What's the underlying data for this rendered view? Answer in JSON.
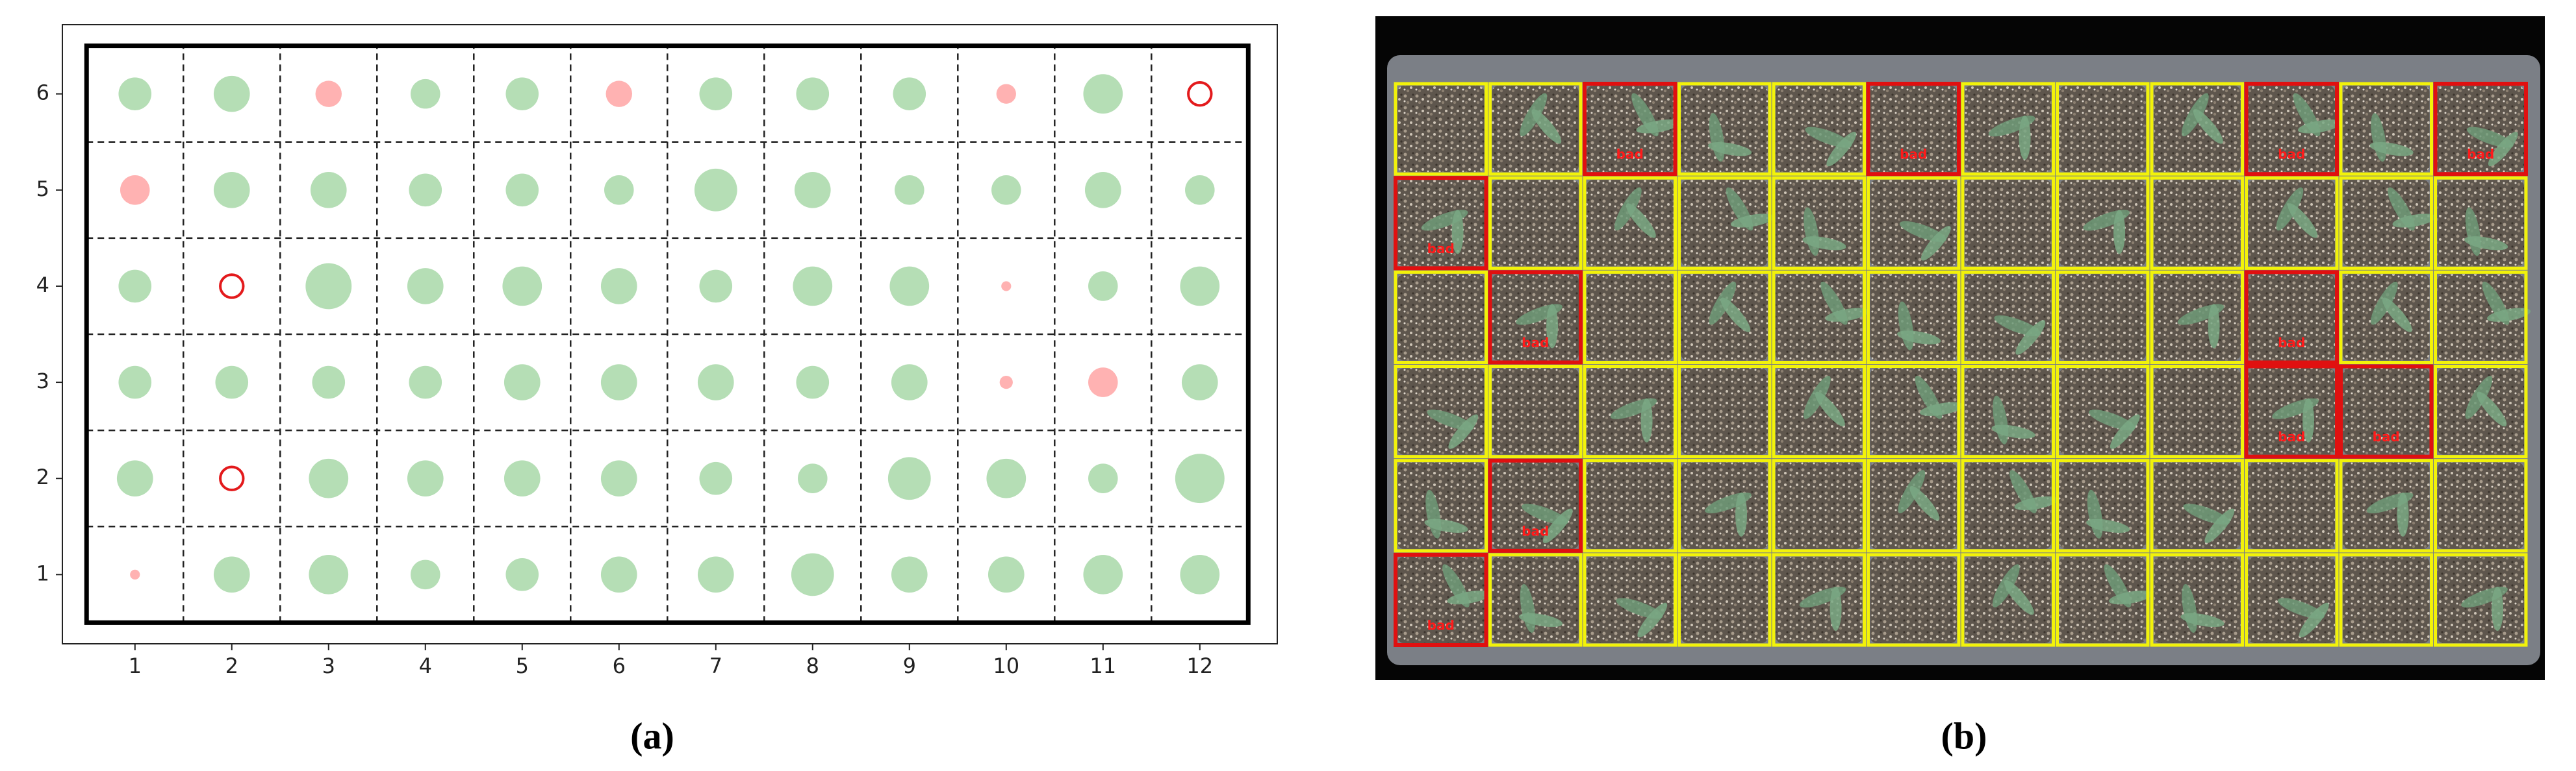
{
  "chart_data": {
    "type": "scatter",
    "xlim": [
      0.25,
      12.8
    ],
    "ylim": [
      0.28,
      6.72
    ],
    "xticks": [
      1,
      2,
      3,
      4,
      5,
      6,
      7,
      8,
      9,
      10,
      11,
      12
    ],
    "yticks": [
      1,
      2,
      3,
      4,
      5,
      6
    ],
    "series": [
      {
        "color": "#2ca02c",
        "alpha": 0.35,
        "filled": true,
        "x": [
          1,
          2,
          4,
          5,
          7,
          8,
          9,
          11,
          2,
          3,
          4,
          5,
          6,
          7,
          8,
          9,
          10,
          11,
          12,
          1,
          3,
          4,
          5,
          6,
          7,
          8,
          9,
          11,
          12,
          1,
          2,
          3,
          4,
          5,
          6,
          7,
          8,
          9,
          12,
          1,
          3,
          4,
          5,
          6,
          7,
          8,
          9,
          10,
          11,
          12,
          2,
          3,
          4,
          5,
          6,
          7,
          8,
          9,
          10,
          11,
          12
        ],
        "y": [
          6,
          6,
          6,
          6,
          6,
          6,
          6,
          6,
          5,
          5,
          5,
          5,
          5,
          5,
          5,
          5,
          5,
          5,
          5,
          4,
          4,
          4,
          4,
          4,
          4,
          4,
          4,
          4,
          4,
          3,
          3,
          3,
          3,
          3,
          3,
          3,
          3,
          3,
          3,
          2,
          2,
          2,
          2,
          2,
          2,
          2,
          2,
          2,
          2,
          2,
          1,
          1,
          1,
          1,
          1,
          1,
          1,
          1,
          1,
          1,
          1
        ],
        "sizes": [
          100,
          121,
          81,
          100,
          100,
          100,
          100,
          144,
          121,
          121,
          100,
          100,
          81,
          169,
          121,
          81,
          81,
          121,
          81,
          100,
          196,
          121,
          144,
          121,
          100,
          144,
          144,
          81,
          144,
          100,
          100,
          100,
          100,
          121,
          121,
          121,
          100,
          121,
          121,
          121,
          144,
          121,
          121,
          121,
          100,
          81,
          169,
          144,
          81,
          225,
          121,
          144,
          81,
          100,
          121,
          121,
          169,
          121,
          121,
          144,
          144
        ]
      },
      {
        "color": "#ff0000",
        "alpha": 0.3,
        "filled": true,
        "x": [
          3,
          6,
          10,
          1,
          10,
          10,
          11,
          1
        ],
        "y": [
          6,
          6,
          6,
          5,
          4,
          3,
          3,
          1
        ],
        "sizes": [
          64,
          64,
          36,
          81,
          9,
          16,
          81,
          9
        ]
      },
      {
        "color": "#e31a1c",
        "alpha": 1,
        "filled": false,
        "x": [
          12,
          2,
          2
        ],
        "y": [
          6,
          4,
          2
        ],
        "sizes": [
          49,
          49,
          49
        ]
      }
    ]
  },
  "photo": {
    "rows": 6,
    "cols": 12,
    "label": "bad",
    "bad_cells": [
      [
        3,
        6
      ],
      [
        6,
        6
      ],
      [
        10,
        6
      ],
      [
        12,
        6
      ],
      [
        1,
        5
      ],
      [
        2,
        4
      ],
      [
        10,
        4
      ],
      [
        10,
        3
      ],
      [
        11,
        3
      ],
      [
        2,
        2
      ],
      [
        1,
        1
      ]
    ]
  },
  "captions": [
    "(a)",
    "(b)"
  ]
}
